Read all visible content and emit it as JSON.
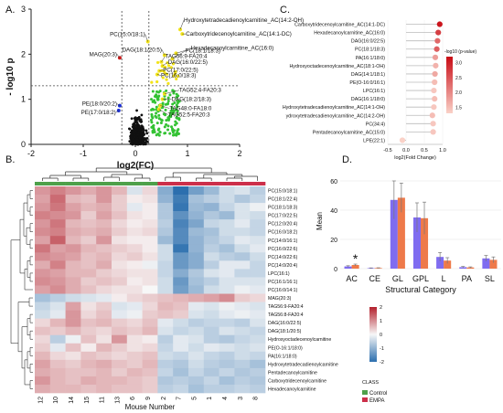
{
  "panels": {
    "a": "A.",
    "b": "B.",
    "c": "C.",
    "d": "D."
  },
  "chart_data": [
    {
      "type": "scatter",
      "xlabel": "log2(FC)",
      "ylabel": "- log10 p",
      "xlim": [
        -2,
        2
      ],
      "ylim": [
        0,
        3
      ],
      "xticks": [
        "-2",
        "-1",
        "0",
        "1",
        "2"
      ],
      "yticks": [
        "0",
        "1",
        "2",
        "3"
      ],
      "thresholds": {
        "x": [
          -0.26,
          0.26
        ],
        "y": 1.3
      },
      "colors": {
        "up": "#33c233",
        "up_strong": "#f2e31a",
        "down": "#1a2ed6",
        "down_strong": "#cc1a1a",
        "ns": "#111111"
      },
      "labeled_points": [
        {
          "label": "Hydroxytetradecadienoylcarnitine_AC(14:2-OH)",
          "x": 0.86,
          "y": 2.55
        },
        {
          "label": "Carboxytridecenoylcarnitine_AC(14:1-DC)",
          "x": 0.9,
          "y": 2.45
        },
        {
          "label": "PC(15:0/18:1)",
          "x": 0.24,
          "y": 2.28
        },
        {
          "label": "MAG(20:3)",
          "x": -0.3,
          "y": 1.92
        },
        {
          "label": "PC(18:1/18:3)",
          "x": 0.78,
          "y": 2.02
        },
        {
          "label": "DAG(18:1/20:5)",
          "x": 0.56,
          "y": 1.98
        },
        {
          "label": "Hexadecanoylcarnitine_AC(16:0)",
          "x": 0.71,
          "y": 1.9
        },
        {
          "label": "TAG56:9-FA20:4",
          "x": 0.5,
          "y": 1.83
        },
        {
          "label": "DAG(16:0/22:5)",
          "x": 0.52,
          "y": 1.74
        },
        {
          "label": "PC(17:0/22:5)",
          "x": 0.46,
          "y": 1.63
        },
        {
          "label": "PC(16:0/18:3)",
          "x": 0.42,
          "y": 1.55
        },
        {
          "label": "TAG52:4-FA20:3",
          "x": 0.56,
          "y": 1.12
        },
        {
          "label": "DAG(18:2/18:3)",
          "x": 0.52,
          "y": 1.0
        },
        {
          "label": "TAG48:0-FA18:0",
          "x": 0.48,
          "y": 0.86
        },
        {
          "label": "TAG52:5-FA20:3",
          "x": 0.45,
          "y": 0.78
        },
        {
          "label": "PE(18:0/20:2)",
          "x": -0.3,
          "y": 0.86
        },
        {
          "label": "PE(17:0/18:2)",
          "x": -0.32,
          "y": 0.75
        }
      ]
    },
    {
      "type": "heatmap",
      "xlabel": "Mouse Number",
      "columns": [
        "12",
        "10",
        "14",
        "15",
        "11",
        "13",
        "6",
        "9",
        "2",
        "7",
        "5",
        "1",
        "4",
        "3",
        "8"
      ],
      "column_groups": [
        "Control",
        "Control",
        "Control",
        "Control",
        "Control",
        "Control",
        "Control",
        "Control",
        "EMPA",
        "EMPA",
        "EMPA",
        "EMPA",
        "EMPA",
        "EMPA",
        "EMPA"
      ],
      "rows": [
        "PC(15:0/18:1)",
        "PC(18:1/22:4)",
        "PC(18:1/18:3)",
        "PC(17:0/22:5)",
        "PC(12:0/20:4)",
        "PC(16:0/18:2)",
        "PC(14:0/16:1)",
        "PC(16:0/22:6)",
        "PC(14:0/22:6)",
        "PC(14:0/20:4)",
        "LPC(16:1)",
        "PC(16:1/16:1)",
        "PC(16:0/14:1)",
        "MAG(20:3)",
        "TAG56:9-FA20:4",
        "TAG56:8-FA20:4",
        "DAG(16:0/22:5)",
        "DAG(18:1/20:5)",
        "Hydroxyoctadecenoylcarnitine",
        "PE(O-16:1/18:0)",
        "PA(16:1/18:0)",
        "Hydroxytetradecadienoylcarnitine",
        "Pentadecanoylcarnitine",
        "Carboxytridecenoylcarnitine",
        "Hexadecanoylcarnitine"
      ],
      "color_scale": {
        "min": -2,
        "max": 2,
        "ticks": [
          "2",
          "1",
          "0",
          "-1",
          "-2"
        ],
        "low": "#2c6fae",
        "mid": "#f7f7f7",
        "high": "#b3202c"
      },
      "legend": {
        "title": "CLASS",
        "items": [
          {
            "name": "Control",
            "color": "#4ea04a"
          },
          {
            "name": "EMPA",
            "color": "#cc2f4a"
          }
        ]
      },
      "values": [
        [
          0.9,
          1.1,
          0.9,
          0.7,
          0.9,
          0.6,
          -0.3,
          0.3,
          -1.1,
          -2.0,
          -1.3,
          -0.9,
          -0.4,
          -0.3,
          -0.6
        ],
        [
          0.8,
          1.3,
          0.6,
          0.5,
          0.9,
          0.4,
          0.1,
          0.2,
          -1.0,
          -1.8,
          -0.8,
          -0.6,
          -0.4,
          -0.7,
          -0.5
        ],
        [
          0.9,
          1.2,
          0.8,
          0.6,
          0.7,
          0.4,
          -0.2,
          0.1,
          -0.7,
          -1.9,
          -0.9,
          -1.0,
          -0.5,
          -0.3,
          -0.1
        ],
        [
          1.1,
          1.0,
          0.9,
          0.4,
          0.8,
          0.5,
          0.2,
          0.1,
          -0.7,
          -1.5,
          -1.0,
          -0.7,
          -0.9,
          -0.3,
          -0.4
        ],
        [
          0.9,
          1.2,
          0.6,
          0.5,
          0.6,
          0.3,
          0.1,
          0.2,
          -0.6,
          -1.7,
          -1.2,
          -0.5,
          -0.4,
          -0.2,
          -0.5
        ],
        [
          1.0,
          1.1,
          0.7,
          0.6,
          0.7,
          0.4,
          0.2,
          0.3,
          -0.7,
          -1.6,
          -0.9,
          -0.8,
          -0.4,
          -0.4,
          -0.5
        ],
        [
          0.8,
          1.4,
          0.6,
          0.4,
          0.9,
          0.2,
          0.1,
          0.1,
          -0.9,
          -1.6,
          -1.0,
          -0.7,
          -0.5,
          -0.2,
          -0.3
        ],
        [
          1.2,
          0.8,
          0.9,
          0.6,
          0.5,
          0.4,
          0.3,
          0.1,
          -0.4,
          -1.9,
          -1.0,
          -0.6,
          -0.8,
          -0.4,
          -0.2
        ],
        [
          1.0,
          0.9,
          0.8,
          0.5,
          0.6,
          0.3,
          0.4,
          0.2,
          -0.4,
          -1.4,
          -1.1,
          -0.4,
          -0.6,
          -0.7,
          -0.4
        ],
        [
          0.7,
          1.1,
          0.6,
          0.5,
          0.7,
          0.2,
          0.1,
          -0.1,
          -0.5,
          -1.4,
          -1.1,
          -0.6,
          -0.2,
          -0.2,
          -0.5
        ],
        [
          0.9,
          0.8,
          0.6,
          0.6,
          0.4,
          0.3,
          0.2,
          0.2,
          -0.5,
          -1.1,
          -0.7,
          -0.3,
          -0.2,
          -0.5,
          -0.5
        ],
        [
          1.0,
          0.9,
          0.7,
          0.4,
          0.5,
          0.4,
          0.1,
          0.2,
          -0.4,
          -1.4,
          -0.8,
          -0.6,
          -0.3,
          -0.3,
          -0.3
        ],
        [
          0.8,
          1.0,
          0.7,
          0.5,
          0.3,
          0.2,
          0.2,
          0.0,
          -0.4,
          -1.3,
          -0.9,
          -0.4,
          -0.3,
          -0.1,
          -0.2
        ],
        [
          -0.8,
          -0.6,
          -0.4,
          -0.3,
          -0.2,
          0.1,
          0.3,
          0.4,
          0.5,
          0.6,
          0.7,
          0.8,
          1.0,
          0.4,
          0.3
        ],
        [
          -0.5,
          -0.3,
          0.8,
          0.2,
          0.4,
          -0.3,
          -0.2,
          0.3,
          0.6,
          0.5,
          -0.2,
          -0.3,
          -0.1,
          -0.2,
          -0.3
        ],
        [
          -0.4,
          -0.2,
          0.9,
          0.3,
          0.5,
          -0.2,
          -0.1,
          0.4,
          0.5,
          0.4,
          -0.3,
          -0.4,
          -0.2,
          -0.1,
          -0.2
        ],
        [
          0.3,
          0.6,
          0.9,
          0.5,
          0.6,
          0.4,
          0.3,
          0.5,
          -0.2,
          -0.4,
          -0.6,
          -0.5,
          -0.5,
          -0.6,
          -0.3
        ],
        [
          0.5,
          0.4,
          0.6,
          0.4,
          0.3,
          0.5,
          0.4,
          0.6,
          -0.3,
          -0.5,
          -0.4,
          -0.6,
          -0.3,
          -0.4,
          -0.5
        ],
        [
          0.3,
          -0.6,
          -0.1,
          0.5,
          0.2,
          0.9,
          0.2,
          0.1,
          -0.6,
          -0.2,
          -0.3,
          -0.6,
          -0.7,
          -0.5,
          -0.4
        ],
        [
          0.4,
          -0.2,
          0.5,
          0.1,
          0.6,
          0.4,
          0.2,
          0.3,
          -0.5,
          -0.2,
          -0.4,
          -0.2,
          -0.3,
          -0.4,
          -0.3
        ],
        [
          0.6,
          0.3,
          0.2,
          0.5,
          0.4,
          0.3,
          0.4,
          0.5,
          -0.4,
          -0.5,
          -0.3,
          -0.5,
          -0.6,
          -0.4,
          -0.5
        ],
        [
          0.8,
          0.5,
          0.4,
          0.6,
          0.7,
          0.5,
          0.4,
          0.6,
          -0.6,
          -0.7,
          -0.4,
          -0.6,
          -0.7,
          -0.6,
          -0.8
        ],
        [
          0.7,
          0.6,
          0.5,
          0.5,
          0.6,
          0.4,
          0.6,
          0.5,
          -0.5,
          -0.8,
          -0.5,
          -0.7,
          -0.5,
          -0.7,
          -0.6
        ],
        [
          0.9,
          0.6,
          0.5,
          0.7,
          0.6,
          0.6,
          0.5,
          0.4,
          -0.7,
          -0.6,
          -0.7,
          -0.5,
          -0.8,
          -0.6,
          -0.7
        ],
        [
          0.7,
          0.6,
          0.6,
          0.5,
          0.6,
          0.5,
          0.5,
          0.4,
          -0.6,
          -0.5,
          -0.8,
          -0.6,
          -0.6,
          -0.5,
          -0.6
        ]
      ]
    },
    {
      "type": "scatter",
      "xlabel": "log2(Fold Change)",
      "xlim": [
        -0.5,
        1.0
      ],
      "xticks": [
        "-0.5",
        "0.0",
        "0.5",
        "1.0"
      ],
      "categories": [
        "Carboxytridecenoylcarnitine_AC(14:1-DC)",
        "Hexadecanoylcarnitine_AC(16:0)",
        "DAG(16:0/22:5)",
        "PC(18:1/18:3)",
        "PA(16:1/18:0)",
        "Hydroxyoctadecenoylcarnitine_AC(18:1-OH)",
        "DAG(14:1/18:1)",
        "PE(O-16:0/16:1)",
        "LPC(16:1)",
        "DAG(16:1/18:0)",
        "Hydroxytetradecadienoylcarnitine_AC(14:1-OH)",
        "ydroxytetradecadienoylcarnitine_AC(14:2-OH)",
        "PC(34:4)",
        "Pentadecanoylcarnitine_AC(15:0)",
        "LPE(22:1)"
      ],
      "values": [
        0.92,
        0.88,
        0.86,
        0.84,
        0.8,
        0.81,
        0.79,
        0.78,
        0.76,
        0.78,
        0.76,
        0.72,
        0.74,
        0.74,
        -0.1
      ],
      "colorbar": {
        "title": "-log10 (p-value)",
        "ticks": [
          "3.0",
          "2.5",
          "2.0",
          "1.5"
        ],
        "min": 1.3,
        "max": 3.2
      },
      "pvals": [
        3.1,
        2.7,
        2.3,
        2.4,
        1.8,
        1.6,
        1.7,
        1.5,
        1.4,
        1.5,
        1.4,
        1.5,
        1.4,
        1.4,
        1.3
      ]
    },
    {
      "type": "bar",
      "xlabel": "Structural Category",
      "ylabel": "Mean",
      "ylim": [
        0,
        65
      ],
      "yticks": [
        "0",
        "20",
        "40",
        "60"
      ],
      "categories": [
        "AC",
        "CE",
        "GL",
        "GPL",
        "L",
        "PA",
        "SL"
      ],
      "series": [
        {
          "name": "Control",
          "color": "#7f6cf0",
          "values": [
            1.5,
            0.3,
            47,
            35,
            8,
            1,
            7
          ],
          "errors": [
            0.5,
            0.2,
            13,
            10,
            3,
            0.5,
            2
          ]
        },
        {
          "name": "EMPA",
          "color": "#ee7a4a",
          "values": [
            2.5,
            0.4,
            48.5,
            34.5,
            5.5,
            0.8,
            6
          ],
          "errors": [
            0.6,
            0.2,
            10,
            11,
            2,
            0.4,
            2
          ]
        }
      ],
      "annotations": [
        {
          "text": "*",
          "category": "AC"
        }
      ]
    }
  ]
}
